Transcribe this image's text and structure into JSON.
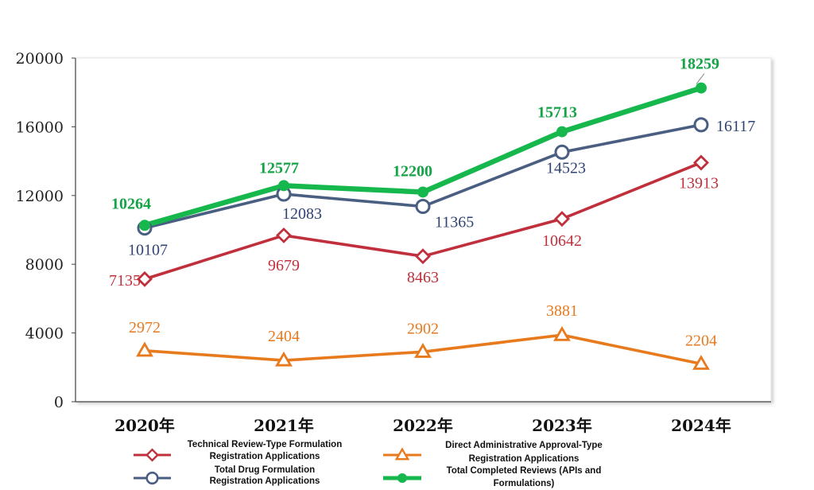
{
  "chart_data": {
    "type": "line",
    "title": "",
    "xlabel": "",
    "ylabel": "",
    "categories": [
      "2020年",
      "2021年",
      "2022年",
      "2023年",
      "2024年"
    ],
    "ylim": [
      0,
      20000
    ],
    "yticks": [
      "0",
      "4000",
      "8000",
      "12000",
      "16000",
      "20000"
    ],
    "grid": false,
    "legend_position": "bottom",
    "series": [
      {
        "key": "technical",
        "name": "Technical Review-Type Formulation Registration Applications",
        "legend_lines": [
          "Technical Review-Type Formulation",
          "Registration Applications"
        ],
        "values": [
          7135,
          9679,
          8463,
          10642,
          13913
        ],
        "color": "#c0303c",
        "marker": "diamond"
      },
      {
        "key": "direct",
        "name": "Direct Administrative Approval-Type Registration Applications",
        "legend_lines": [
          "Direct Administrative Approval-Type",
          "Registration Applications"
        ],
        "values": [
          2972,
          2404,
          2902,
          3881,
          2204
        ],
        "color": "#e87a1e",
        "marker": "triangle"
      },
      {
        "key": "total_formulation",
        "name": "Total Drug Formulation Registration Applications",
        "legend_lines": [
          "Total Drug Formulation",
          "Registration Applications"
        ],
        "values": [
          10107,
          12083,
          11365,
          14523,
          16117
        ],
        "color": "#4a5e82",
        "label_color": "#2f4373",
        "marker": "circle-open"
      },
      {
        "key": "total_completed",
        "name": "Total Completed Reviews (APIs and Formulations)",
        "legend_lines": [
          "Total Completed Reviews (APIs and",
          "Formulations)"
        ],
        "values": [
          10264,
          12577,
          12200,
          15713,
          18259
        ],
        "color": "#16b84e",
        "label_color": "#15a347",
        "marker": "circle-filled"
      }
    ]
  }
}
